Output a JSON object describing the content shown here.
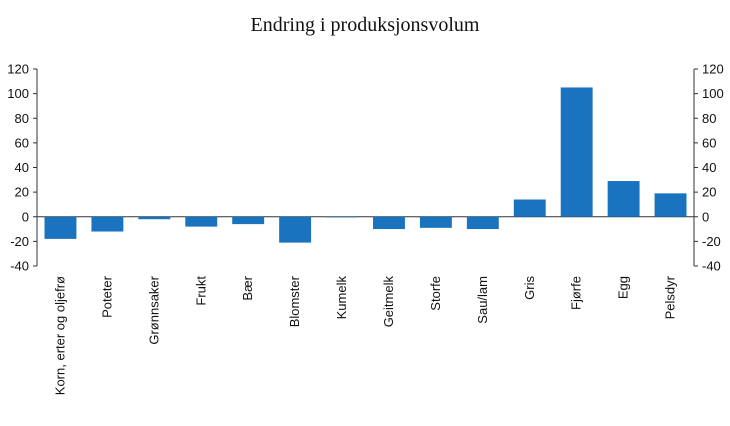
{
  "chart_data": {
    "type": "bar",
    "title": "Endring i produksjonsvolum",
    "categories": [
      "Korn, erter og oljefrø",
      "Poteter",
      "Grønnsaker",
      "Frukt",
      "Bær",
      "Blomster",
      "Kumelk",
      "Geitmelk",
      "Storfe",
      "Sau/lam",
      "Gris",
      "Fjørfe",
      "Egg",
      "Pelsdyr"
    ],
    "values": [
      -18,
      -12,
      -2,
      -8,
      -6,
      -21,
      -0.5,
      -10,
      -9,
      -10,
      14,
      105,
      29,
      19
    ],
    "ylim": [
      -40,
      120
    ],
    "yticks": [
      120,
      100,
      80,
      60,
      40,
      20,
      0,
      -20,
      -40
    ],
    "ytick_labels": [
      "120",
      "100",
      "80",
      "60",
      "40",
      "20",
      "0",
      "-20",
      "-40"
    ],
    "secondary_yaxis": true,
    "grid": false,
    "bar_color": "#1a73be"
  }
}
